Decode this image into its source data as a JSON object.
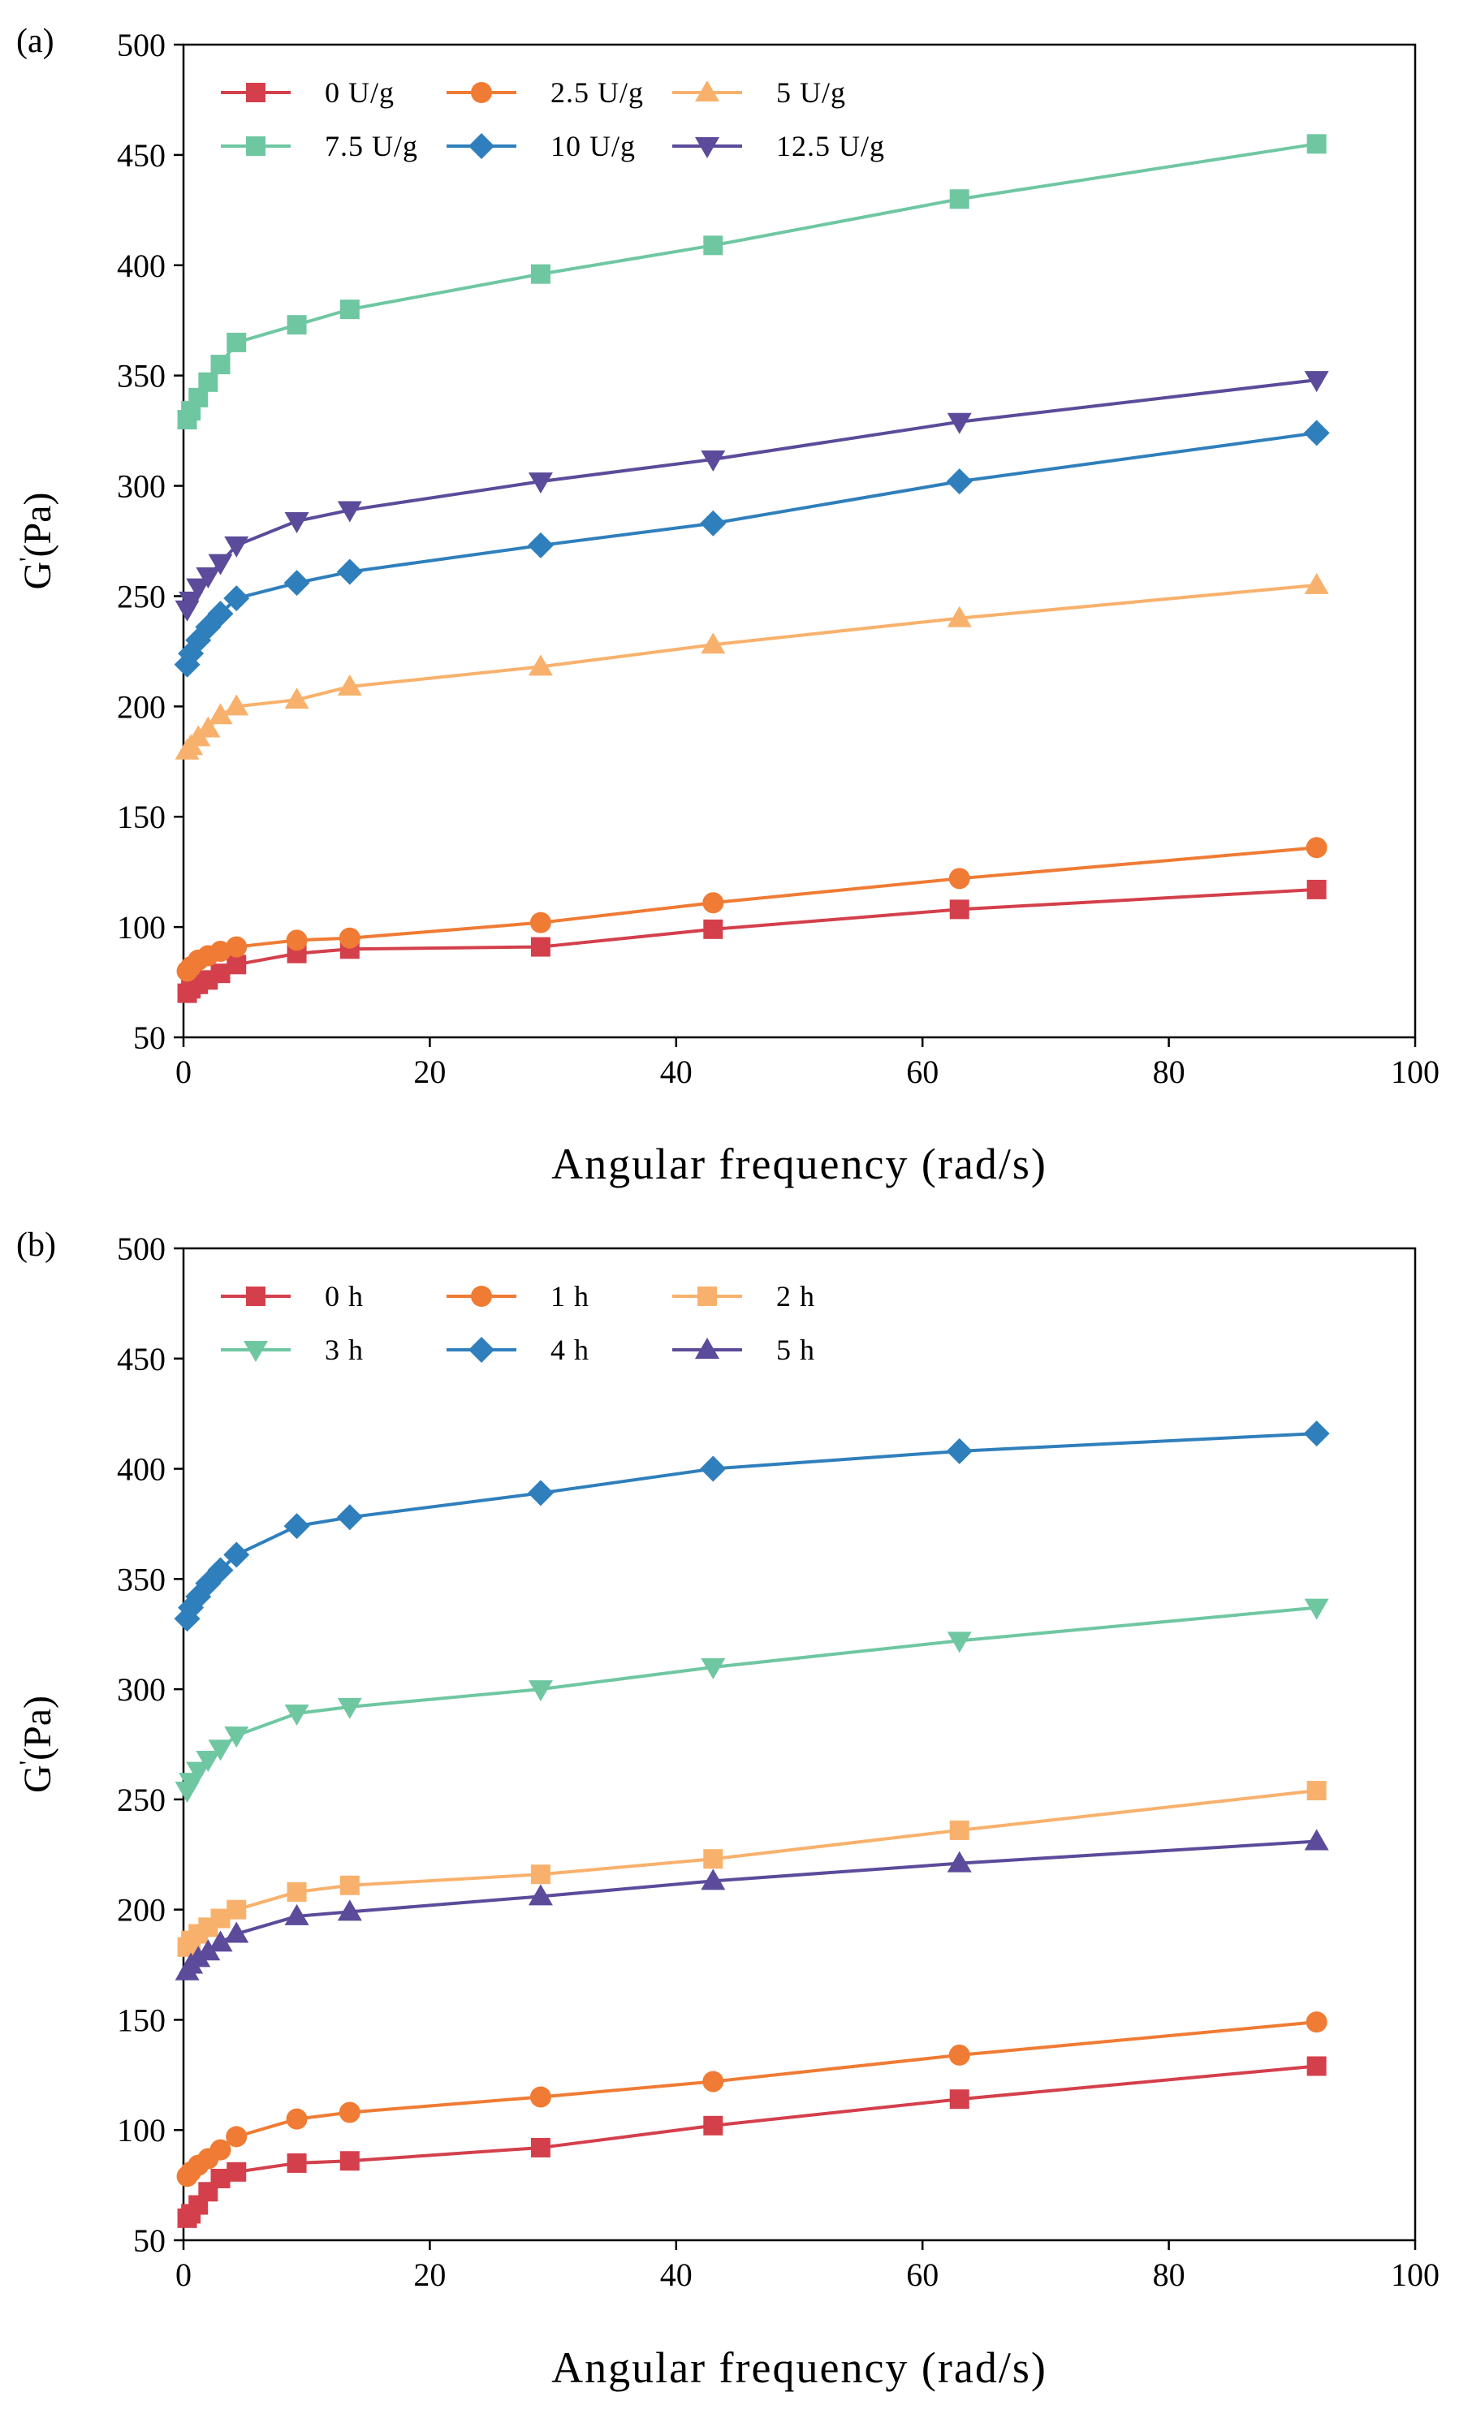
{
  "chart_data": [
    {
      "panel": "(a)",
      "type": "line",
      "xlabel": "Angular frequency (rad/s)",
      "ylabel_main": "G",
      "ylabel_sup": "'",
      "ylabel_rest": "(Pa)",
      "xlim": [
        0,
        100
      ],
      "ylim": [
        50,
        500
      ],
      "xticks": [
        0,
        20,
        40,
        60,
        80,
        100
      ],
      "yticks": [
        50,
        100,
        150,
        200,
        250,
        300,
        350,
        400,
        450,
        500
      ],
      "grid": false,
      "legend_position": "top-left",
      "x": [
        0.3,
        0.6,
        1.2,
        2,
        3,
        4.3,
        9.2,
        13.5,
        29,
        43,
        63,
        92
      ],
      "series": [
        {
          "name": "0 U/g",
          "color": "#d43f4c",
          "marker": "square",
          "values": [
            70,
            72,
            74,
            76,
            79,
            83,
            88,
            90,
            91,
            99,
            108,
            117
          ]
        },
        {
          "name": "2.5 U/g",
          "color": "#ef7b34",
          "marker": "circle",
          "values": [
            80,
            82,
            85,
            87,
            89,
            91,
            94,
            95,
            102,
            111,
            122,
            136
          ]
        },
        {
          "name": "5 U/g",
          "color": "#f8b16c",
          "marker": "triangle-up",
          "values": [
            180,
            182,
            186,
            190,
            196,
            200,
            203,
            209,
            218,
            228,
            240,
            255
          ]
        },
        {
          "name": "7.5 U/g",
          "color": "#6fc7a2",
          "marker": "square",
          "values": [
            330,
            334,
            340,
            347,
            355,
            365,
            373,
            380,
            396,
            409,
            430,
            455
          ]
        },
        {
          "name": "10 U/g",
          "color": "#2f7fbc",
          "marker": "diamond",
          "values": [
            219,
            224,
            230,
            236,
            242,
            249,
            256,
            261,
            273,
            283,
            302,
            324
          ]
        },
        {
          "name": "12.5 U/g",
          "color": "#5b4b9a",
          "marker": "triangle-down",
          "values": [
            244,
            248,
            254,
            259,
            265,
            273,
            284,
            289,
            302,
            312,
            329,
            348
          ]
        }
      ]
    },
    {
      "panel": "(b)",
      "type": "line",
      "xlabel": "Angular frequency (rad/s)",
      "ylabel_main": "G",
      "ylabel_sup": "'",
      "ylabel_rest": "(Pa)",
      "xlim": [
        0,
        100
      ],
      "ylim": [
        50,
        500
      ],
      "xticks": [
        0,
        20,
        40,
        60,
        80,
        100
      ],
      "yticks": [
        50,
        100,
        150,
        200,
        250,
        300,
        350,
        400,
        450,
        500
      ],
      "grid": false,
      "legend_position": "top-left",
      "x": [
        0.3,
        0.6,
        1.2,
        2,
        3,
        4.3,
        9.2,
        13.5,
        29,
        43,
        63,
        92
      ],
      "series": [
        {
          "name": "0 h",
          "color": "#d43f4c",
          "marker": "square",
          "values": [
            60,
            62,
            66,
            72,
            78,
            81,
            85,
            86,
            92,
            102,
            114,
            129
          ]
        },
        {
          "name": "1 h",
          "color": "#ef7b34",
          "marker": "circle",
          "values": [
            79,
            81,
            84,
            87,
            91,
            97,
            105,
            108,
            115,
            122,
            134,
            149
          ]
        },
        {
          "name": "2 h",
          "color": "#f8b16c",
          "marker": "square",
          "values": [
            183,
            186,
            189,
            192,
            196,
            200,
            208,
            211,
            216,
            223,
            236,
            254
          ]
        },
        {
          "name": "3 h",
          "color": "#6fc7a2",
          "marker": "triangle-down",
          "values": [
            254,
            258,
            263,
            268,
            273,
            279,
            289,
            292,
            300,
            310,
            322,
            337
          ]
        },
        {
          "name": "4 h",
          "color": "#2f7fbc",
          "marker": "diamond",
          "values": [
            332,
            337,
            342,
            348,
            354,
            361,
            374,
            378,
            389,
            400,
            408,
            416
          ]
        },
        {
          "name": "5 h",
          "color": "#5b4b9a",
          "marker": "triangle-up",
          "values": [
            172,
            175,
            178,
            181,
            185,
            189,
            197,
            199,
            206,
            213,
            221,
            231
          ]
        }
      ]
    }
  ]
}
